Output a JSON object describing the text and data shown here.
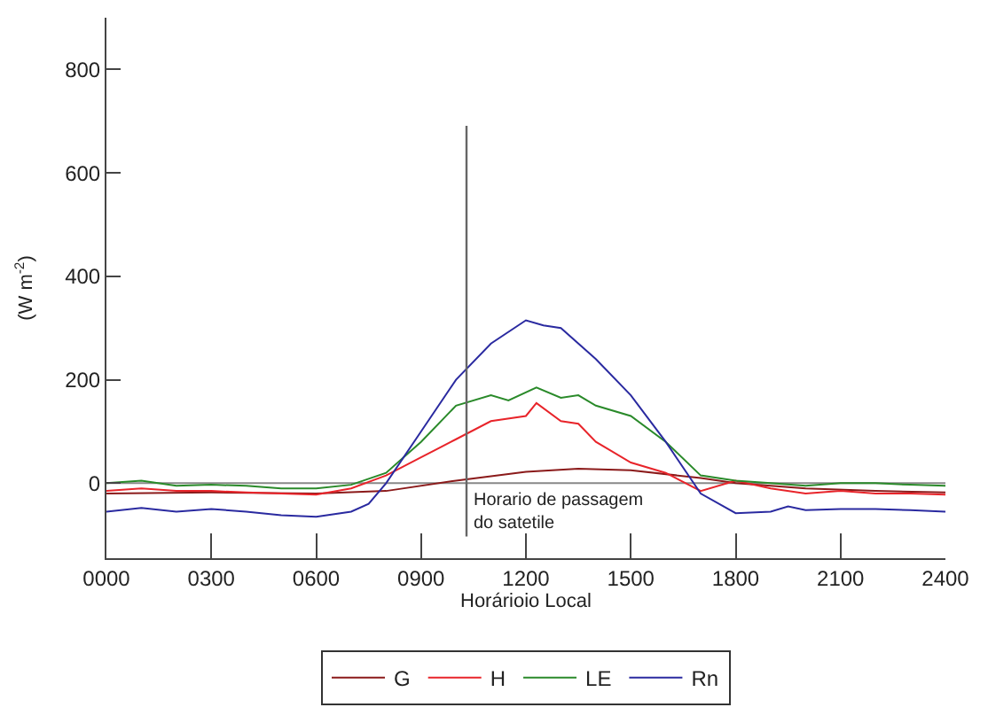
{
  "chart_data": {
    "type": "line",
    "xlabel": "Horárioio Local",
    "ylabel": "(W m$^{-2}$)",
    "xlim": [
      0,
      2400
    ],
    "xticks": [
      {
        "value": 0,
        "label": "0000"
      },
      {
        "value": 300,
        "label": "0300"
      },
      {
        "value": 600,
        "label": "0600"
      },
      {
        "value": 900,
        "label": "0900"
      },
      {
        "value": 1200,
        "label": "1200"
      },
      {
        "value": 1500,
        "label": "1500"
      },
      {
        "value": 1800,
        "label": "1800"
      },
      {
        "value": 2100,
        "label": "2100"
      },
      {
        "value": 2400,
        "label": "2400"
      }
    ],
    "ylim": [
      -145,
      900
    ],
    "yticks": [
      0,
      200,
      400,
      600,
      800
    ],
    "legend": "bottom",
    "grid": false,
    "marker": "none",
    "line_style": "solid",
    "ref_lines": [
      {
        "axis": "y",
        "value": 0,
        "label": null,
        "color": "#888888"
      },
      {
        "axis": "x",
        "value": 1030,
        "label": "Horario de passagem\ndo satetile",
        "color": "#666666"
      }
    ],
    "series": [
      {
        "name": "G",
        "color": "#8b1a1a",
        "x": [
          0,
          300,
          600,
          800,
          1000,
          1200,
          1350,
          1500,
          1700,
          1800,
          2000,
          2200,
          2400
        ],
        "values": [
          -20,
          -18,
          -20,
          -15,
          5,
          22,
          28,
          25,
          10,
          0,
          -10,
          -15,
          -18
        ]
      },
      {
        "name": "H",
        "color": "#e8242a",
        "x": [
          0,
          100,
          200,
          300,
          400,
          500,
          600,
          700,
          800,
          900,
          1000,
          1100,
          1200,
          1230,
          1300,
          1350,
          1400,
          1500,
          1600,
          1700,
          1800,
          1900,
          2000,
          2100,
          2200,
          2300,
          2400
        ],
        "values": [
          -15,
          -10,
          -15,
          -15,
          -18,
          -20,
          -22,
          -10,
          15,
          50,
          85,
          120,
          130,
          155,
          120,
          115,
          80,
          40,
          20,
          -15,
          5,
          -10,
          -20,
          -15,
          -20,
          -20,
          -22
        ]
      },
      {
        "name": "LE",
        "color": "#2a8a2a",
        "x": [
          0,
          100,
          200,
          300,
          400,
          500,
          600,
          700,
          800,
          900,
          1000,
          1100,
          1150,
          1230,
          1300,
          1350,
          1400,
          1500,
          1600,
          1700,
          1800,
          1900,
          2000,
          2100,
          2200,
          2300,
          2400
        ],
        "values": [
          0,
          5,
          -5,
          -3,
          -5,
          -10,
          -10,
          -3,
          20,
          80,
          150,
          170,
          160,
          185,
          165,
          170,
          150,
          130,
          80,
          15,
          5,
          0,
          -5,
          0,
          0,
          -3,
          -5
        ]
      },
      {
        "name": "Rn",
        "color": "#2a2aa0",
        "x": [
          0,
          100,
          200,
          300,
          400,
          500,
          600,
          700,
          750,
          800,
          900,
          1000,
          1100,
          1200,
          1250,
          1300,
          1400,
          1500,
          1600,
          1700,
          1800,
          1900,
          1950,
          2000,
          2100,
          2200,
          2300,
          2400
        ],
        "values": [
          -55,
          -48,
          -55,
          -50,
          -55,
          -62,
          -65,
          -55,
          -40,
          0,
          100,
          200,
          270,
          315,
          305,
          300,
          240,
          170,
          80,
          -20,
          -58,
          -55,
          -45,
          -52,
          -50,
          -50,
          -52,
          -55
        ]
      }
    ]
  }
}
